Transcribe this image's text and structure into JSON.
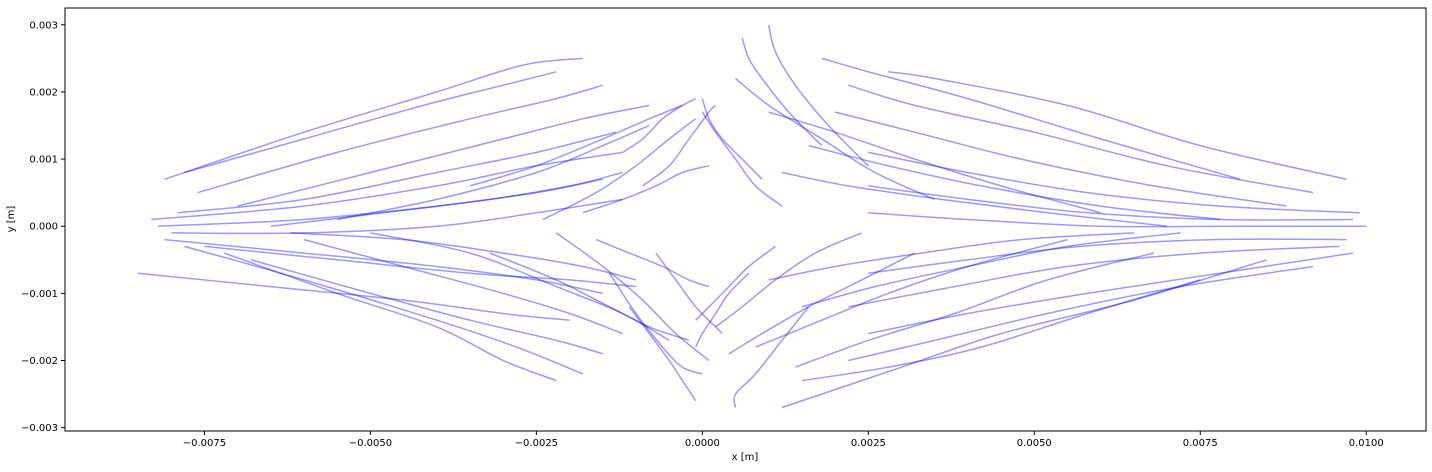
{
  "chart_data": {
    "type": "line",
    "title": "",
    "xlabel": "x [m]",
    "ylabel": "y [m]",
    "xlim": [
      -0.0096,
      0.0109
    ],
    "ylim": [
      -0.00305,
      0.00325
    ],
    "xticks": [
      -0.0075,
      -0.005,
      -0.0025,
      0.0,
      0.0025,
      0.005,
      0.0075,
      0.01
    ],
    "xtick_labels": [
      "−0.0075",
      "−0.0050",
      "−0.0025",
      "0.0000",
      "0.0025",
      "0.0050",
      "0.0075",
      "0.0100"
    ],
    "yticks": [
      -0.003,
      -0.002,
      -0.001,
      0.0,
      0.001,
      0.002,
      0.003
    ],
    "ytick_labels": [
      "−0.003",
      "−0.002",
      "−0.001",
      "0.000",
      "0.001",
      "0.002",
      "0.003"
    ],
    "grid": false,
    "legend": false,
    "line_color": "#0000ff",
    "line_alpha": 0.4,
    "series": [
      {
        "x": [
          -0.0081,
          -0.006,
          -0.004,
          -0.0027,
          -0.0018
        ],
        "y": [
          0.0007,
          0.0014,
          0.002,
          0.0024,
          0.0025
        ]
      },
      {
        "x": [
          -0.0078,
          -0.006,
          -0.0042,
          -0.003,
          -0.0022
        ],
        "y": [
          0.0008,
          0.0013,
          0.0018,
          0.0021,
          0.0023
        ]
      },
      {
        "x": [
          -0.0076,
          -0.0055,
          -0.0035,
          -0.0022,
          -0.0015
        ],
        "y": [
          0.0005,
          0.0011,
          0.0016,
          0.0019,
          0.0021
        ]
      },
      {
        "x": [
          -0.007,
          -0.005,
          -0.003,
          -0.0018,
          -0.0008
        ],
        "y": [
          0.0003,
          0.0008,
          0.0013,
          0.0016,
          0.0018
        ]
      },
      {
        "x": [
          -0.0083,
          -0.006,
          -0.004,
          -0.0025,
          -0.0012
        ],
        "y": [
          0.0001,
          0.0003,
          0.0006,
          0.0009,
          0.0011
        ]
      },
      {
        "x": [
          -0.0082,
          -0.006,
          -0.004,
          -0.0025,
          -0.0015
        ],
        "y": [
          0.0,
          0.0001,
          0.0003,
          0.0005,
          0.0007
        ]
      },
      {
        "x": [
          -0.008,
          -0.006,
          -0.004,
          -0.0025,
          -0.0012
        ],
        "y": [
          -0.0001,
          -0.0001,
          0.0,
          0.0002,
          0.0004
        ]
      },
      {
        "x": [
          -0.0079,
          -0.006,
          -0.004,
          -0.0025,
          -0.0013
        ],
        "y": [
          0.0002,
          0.0004,
          0.0008,
          0.0011,
          0.0014
        ]
      },
      {
        "x": [
          -0.0075,
          -0.0055,
          -0.0035,
          -0.002,
          -0.001
        ],
        "y": [
          -0.0003,
          -0.0005,
          -0.0007,
          -0.0008,
          -0.0009
        ]
      },
      {
        "x": [
          -0.0081,
          -0.006,
          -0.004,
          -0.0025,
          -0.0015
        ],
        "y": [
          -0.0002,
          -0.0004,
          -0.0006,
          -0.0008,
          -0.001
        ]
      },
      {
        "x": [
          -0.0085,
          -0.0065,
          -0.0045,
          -0.003,
          -0.002
        ],
        "y": [
          -0.0007,
          -0.0009,
          -0.0011,
          -0.0013,
          -0.0014
        ]
      },
      {
        "x": [
          -0.0078,
          -0.006,
          -0.004,
          -0.0028,
          -0.0018
        ],
        "y": [
          -0.0003,
          -0.0008,
          -0.0014,
          -0.0018,
          -0.0022
        ]
      },
      {
        "x": [
          -0.0072,
          -0.0055,
          -0.004,
          -0.003,
          -0.0022
        ],
        "y": [
          -0.0004,
          -0.001,
          -0.0015,
          -0.002,
          -0.0023
        ]
      },
      {
        "x": [
          -0.0068,
          -0.005,
          -0.0035,
          -0.0022,
          -0.0015
        ],
        "y": [
          -0.0005,
          -0.001,
          -0.0014,
          -0.0017,
          -0.0019
        ]
      },
      {
        "x": [
          -0.006,
          -0.0045,
          -0.003,
          -0.002,
          -0.0012
        ],
        "y": [
          -0.0002,
          -0.0006,
          -0.001,
          -0.0013,
          -0.0016
        ]
      },
      {
        "x": [
          -0.0055,
          -0.004,
          -0.0025,
          -0.0015,
          -0.0008
        ],
        "y": [
          0.0001,
          0.0004,
          0.0008,
          0.0012,
          0.0015
        ]
      },
      {
        "x": [
          -0.005,
          -0.0035,
          -0.0022,
          -0.0012,
          -0.0005
        ],
        "y": [
          -0.0001,
          -0.0004,
          -0.0009,
          -0.0013,
          -0.0017
        ]
      },
      {
        "x": [
          -0.0065,
          -0.0048,
          -0.0032,
          -0.002,
          -0.0012
        ],
        "y": [
          0.0,
          0.0002,
          0.0004,
          0.0006,
          0.0008
        ]
      },
      {
        "x": [
          -0.0062,
          -0.0045,
          -0.003,
          -0.0018,
          -0.001
        ],
        "y": [
          -0.0001,
          -0.0002,
          -0.0004,
          -0.0006,
          -0.0008
        ]
      },
      {
        "x": [
          -0.0035,
          -0.0025,
          -0.0015,
          -0.0008,
          -0.0003
        ],
        "y": [
          0.0006,
          0.0009,
          0.0013,
          0.0016,
          0.0018
        ]
      },
      {
        "x": [
          -0.0032,
          -0.0022,
          -0.0014,
          -0.0008,
          -0.0002
        ],
        "y": [
          -0.0004,
          -0.0008,
          -0.0012,
          -0.0015,
          -0.0017
        ]
      },
      {
        "x": [
          -0.0024,
          -0.0016,
          -0.001,
          -0.0005,
          -0.0001
        ],
        "y": [
          0.0001,
          0.0005,
          0.0009,
          0.0013,
          0.0016
        ]
      },
      {
        "x": [
          -0.0022,
          -0.0015,
          -0.0009,
          -0.0004,
          0.0001
        ],
        "y": [
          -0.0001,
          -0.0006,
          -0.0011,
          -0.0016,
          -0.002
        ]
      },
      {
        "x": [
          -0.0018,
          -0.0012,
          -0.0007,
          -0.0003,
          0.0001
        ],
        "y": [
          0.0002,
          0.0004,
          0.0006,
          0.0008,
          0.0009
        ]
      },
      {
        "x": [
          -0.0016,
          -0.0011,
          -0.0006,
          -0.0002,
          0.0001
        ],
        "y": [
          -0.0002,
          -0.0004,
          -0.0006,
          -0.0008,
          -0.0009
        ]
      },
      {
        "x": [
          -0.0012,
          -0.0009,
          -0.0006,
          -0.0003,
          -0.0001
        ],
        "y": [
          0.0011,
          0.0013,
          0.0016,
          0.0018,
          0.0019
        ]
      },
      {
        "x": [
          -0.0011,
          -0.0008,
          -0.0005,
          -0.0003,
          -0.0001
        ],
        "y": [
          -0.0012,
          -0.0016,
          -0.002,
          -0.0023,
          -0.0026
        ]
      },
      {
        "x": [
          -0.0014,
          -0.001,
          -0.0006,
          -0.0003,
          0.0
        ],
        "y": [
          -0.0007,
          -0.0013,
          -0.0018,
          -0.0021,
          -0.0022
        ]
      },
      {
        "x": [
          -0.0009,
          -0.0005,
          -0.0002,
          0.0001,
          0.0002
        ],
        "y": [
          0.0006,
          0.0009,
          0.0013,
          0.0017,
          0.0018
        ]
      },
      {
        "x": [
          -0.0007,
          -0.0004,
          -0.0001,
          0.0002,
          0.0003
        ],
        "y": [
          -0.0004,
          -0.0008,
          -0.0012,
          -0.0015,
          -0.0016
        ]
      },
      {
        "x": [
          0.0081,
          0.006,
          0.004,
          0.0025,
          0.0018
        ],
        "y": [
          0.0007,
          0.0013,
          0.0019,
          0.0023,
          0.0025
        ]
      },
      {
        "x": [
          0.0097,
          0.0075,
          0.0055,
          0.0035,
          0.0028
        ],
        "y": [
          0.0007,
          0.0012,
          0.0018,
          0.0022,
          0.0023
        ]
      },
      {
        "x": [
          0.0092,
          0.007,
          0.005,
          0.0032,
          0.0022
        ],
        "y": [
          0.0005,
          0.0009,
          0.0014,
          0.0018,
          0.0021
        ]
      },
      {
        "x": [
          0.0088,
          0.0068,
          0.0048,
          0.0032,
          0.002
        ],
        "y": [
          0.0003,
          0.0006,
          0.001,
          0.0014,
          0.0017
        ]
      },
      {
        "x": [
          0.0099,
          0.0078,
          0.0058,
          0.004,
          0.0025
        ],
        "y": [
          0.0002,
          0.0003,
          0.0005,
          0.0008,
          0.0011
        ]
      },
      {
        "x": [
          0.0098,
          0.0078,
          0.0058,
          0.004,
          0.0025
        ],
        "y": [
          0.0001,
          0.0001,
          0.0002,
          0.0004,
          0.0006
        ]
      },
      {
        "x": [
          0.01,
          0.008,
          0.006,
          0.004,
          0.0025
        ],
        "y": [
          0.0,
          0.0,
          0.0,
          0.0001,
          0.0002
        ]
      },
      {
        "x": [
          0.0097,
          0.0077,
          0.0057,
          0.004,
          0.0025
        ],
        "y": [
          -0.0002,
          -0.0002,
          -0.0003,
          -0.0005,
          -0.0007
        ]
      },
      {
        "x": [
          0.0096,
          0.0075,
          0.0055,
          0.0038,
          0.0022
        ],
        "y": [
          -0.0003,
          -0.0004,
          -0.0006,
          -0.0009,
          -0.0012
        ]
      },
      {
        "x": [
          0.0098,
          0.0078,
          0.0058,
          0.004,
          0.0025
        ],
        "y": [
          -0.0004,
          -0.0007,
          -0.001,
          -0.0013,
          -0.0016
        ]
      },
      {
        "x": [
          0.0092,
          0.0072,
          0.0052,
          0.0035,
          0.0022
        ],
        "y": [
          -0.0006,
          -0.0009,
          -0.0013,
          -0.0017,
          -0.002
        ]
      },
      {
        "x": [
          0.0085,
          0.0065,
          0.0045,
          0.003,
          0.0012
        ],
        "y": [
          -0.0005,
          -0.0011,
          -0.0016,
          -0.0021,
          -0.0027
        ]
      },
      {
        "x": [
          0.0075,
          0.0058,
          0.0042,
          0.0028,
          0.0015
        ],
        "y": [
          -0.0008,
          -0.0013,
          -0.0018,
          -0.0021,
          -0.0023
        ]
      },
      {
        "x": [
          0.0068,
          0.0052,
          0.0038,
          0.0025,
          0.0014
        ],
        "y": [
          -0.0004,
          -0.0008,
          -0.0013,
          -0.0017,
          -0.0021
        ]
      },
      {
        "x": [
          0.006,
          0.0045,
          0.0032,
          0.002,
          0.001
        ],
        "y": [
          0.0002,
          0.0006,
          0.001,
          0.0014,
          0.0017
        ]
      },
      {
        "x": [
          0.0055,
          0.004,
          0.0028,
          0.0018,
          0.0008
        ],
        "y": [
          -0.0002,
          -0.0006,
          -0.001,
          -0.0014,
          -0.0018
        ]
      },
      {
        "x": [
          0.007,
          0.0052,
          0.0036,
          0.0022,
          0.0012
        ],
        "y": [
          0.0,
          0.0002,
          0.0004,
          0.0006,
          0.0008
        ]
      },
      {
        "x": [
          0.0065,
          0.0048,
          0.0033,
          0.002,
          0.001
        ],
        "y": [
          -0.0001,
          -0.0002,
          -0.0004,
          -0.0006,
          -0.0008
        ]
      },
      {
        "x": [
          0.0078,
          0.006,
          0.0042,
          0.0028,
          0.0016
        ],
        "y": [
          0.0001,
          0.0003,
          0.0006,
          0.0009,
          0.0012
        ]
      },
      {
        "x": [
          0.0072,
          0.0055,
          0.004,
          0.0026,
          0.0015
        ],
        "y": [
          -0.0001,
          -0.0003,
          -0.0006,
          -0.0009,
          -0.0012
        ]
      },
      {
        "x": [
          0.0035,
          0.0026,
          0.0018,
          0.001,
          0.0005
        ],
        "y": [
          0.0004,
          0.0008,
          0.0013,
          0.0018,
          0.0022
        ]
      },
      {
        "x": [
          0.0032,
          0.0024,
          0.0016,
          0.0009,
          0.0004
        ],
        "y": [
          -0.0004,
          -0.0008,
          -0.0012,
          -0.0016,
          -0.0019
        ]
      },
      {
        "x": [
          0.0025,
          0.0019,
          0.0014,
          0.0011,
          0.001
        ],
        "y": [
          0.0009,
          0.0015,
          0.0021,
          0.0026,
          0.003
        ]
      },
      {
        "x": [
          0.0024,
          0.0017,
          0.0011,
          0.0006,
          0.0002
        ],
        "y": [
          -0.0001,
          -0.0004,
          -0.0008,
          -0.0012,
          -0.0015
        ]
      },
      {
        "x": [
          0.0018,
          0.0013,
          0.0009,
          0.0007,
          0.0006
        ],
        "y": [
          0.0012,
          0.0017,
          0.0022,
          0.0025,
          0.0028
        ]
      },
      {
        "x": [
          0.0016,
          0.0012,
          0.0008,
          0.0005,
          0.0005
        ],
        "y": [
          -0.0012,
          -0.0017,
          -0.0022,
          -0.0025,
          -0.0027
        ]
      },
      {
        "x": [
          0.0012,
          0.0008,
          0.0005,
          0.0002,
          0.0
        ],
        "y": [
          0.0003,
          0.0006,
          0.001,
          0.0014,
          0.0017
        ]
      },
      {
        "x": [
          0.0011,
          0.0007,
          0.0004,
          0.0001,
          -0.0001
        ],
        "y": [
          -0.0003,
          -0.0006,
          -0.0009,
          -0.0012,
          -0.0014
        ]
      },
      {
        "x": [
          0.0009,
          0.0006,
          0.0003,
          0.0001,
          0.0
        ],
        "y": [
          0.0007,
          0.001,
          0.0013,
          0.0016,
          0.0019
        ]
      },
      {
        "x": [
          0.0007,
          0.0004,
          0.0002,
          0.0,
          -0.0001
        ],
        "y": [
          -0.0007,
          -0.001,
          -0.0013,
          -0.0016,
          -0.0018
        ]
      }
    ]
  }
}
